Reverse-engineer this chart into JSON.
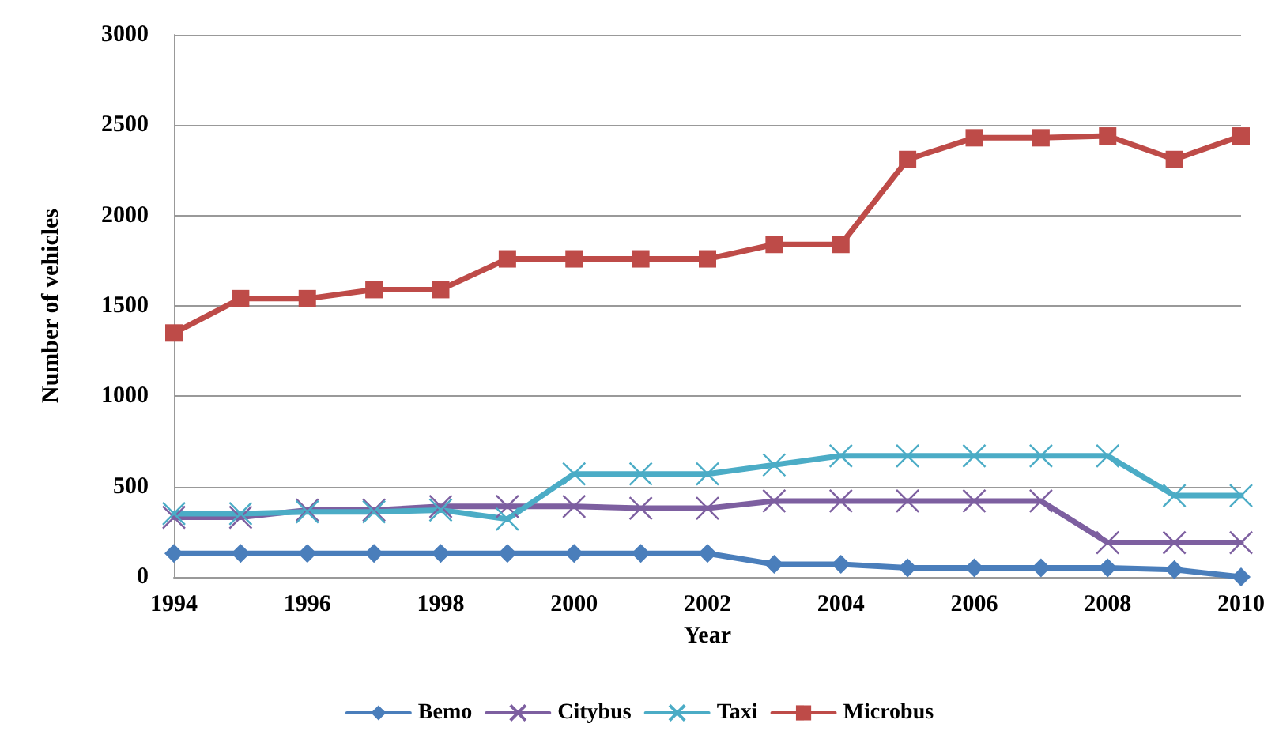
{
  "chart_data": {
    "type": "line",
    "xlabel": "Year",
    "ylabel": "Number of vehicles",
    "x": [
      1994,
      1995,
      1996,
      1997,
      1998,
      1999,
      2000,
      2001,
      2002,
      2003,
      2004,
      2005,
      2006,
      2007,
      2008,
      2009,
      2010
    ],
    "series": [
      {
        "name": "Bemo",
        "color": "#4a7ebb",
        "marker": "diamond",
        "values": [
          130,
          130,
          130,
          130,
          130,
          130,
          130,
          130,
          130,
          70,
          70,
          50,
          50,
          50,
          50,
          40,
          0
        ]
      },
      {
        "name": "Citybus",
        "color": "#7d5fa0",
        "marker": "cross",
        "values": [
          330,
          330,
          370,
          370,
          390,
          390,
          390,
          380,
          380,
          420,
          420,
          420,
          420,
          420,
          190,
          190,
          190
        ]
      },
      {
        "name": "Taxi",
        "color": "#4bacc6",
        "marker": "cross",
        "values": [
          350,
          350,
          360,
          360,
          370,
          320,
          570,
          570,
          570,
          620,
          670,
          670,
          670,
          670,
          670,
          450,
          450
        ]
      },
      {
        "name": "Microbus",
        "color": "#be4b48",
        "marker": "square",
        "values": [
          1350,
          1540,
          1540,
          1590,
          1590,
          1760,
          1760,
          1760,
          1760,
          1840,
          1840,
          2310,
          2430,
          2430,
          2440,
          2310,
          2440
        ]
      }
    ],
    "xlim": [
      1994,
      2010
    ],
    "xticks": [
      1994,
      1996,
      1998,
      2000,
      2002,
      2004,
      2006,
      2008,
      2010
    ],
    "ylim": [
      0,
      3000
    ],
    "yticks": [
      0,
      500,
      1000,
      1500,
      2000,
      2500,
      3000
    ],
    "grid": "y",
    "legend": "bottom",
    "line_style": "solid"
  }
}
